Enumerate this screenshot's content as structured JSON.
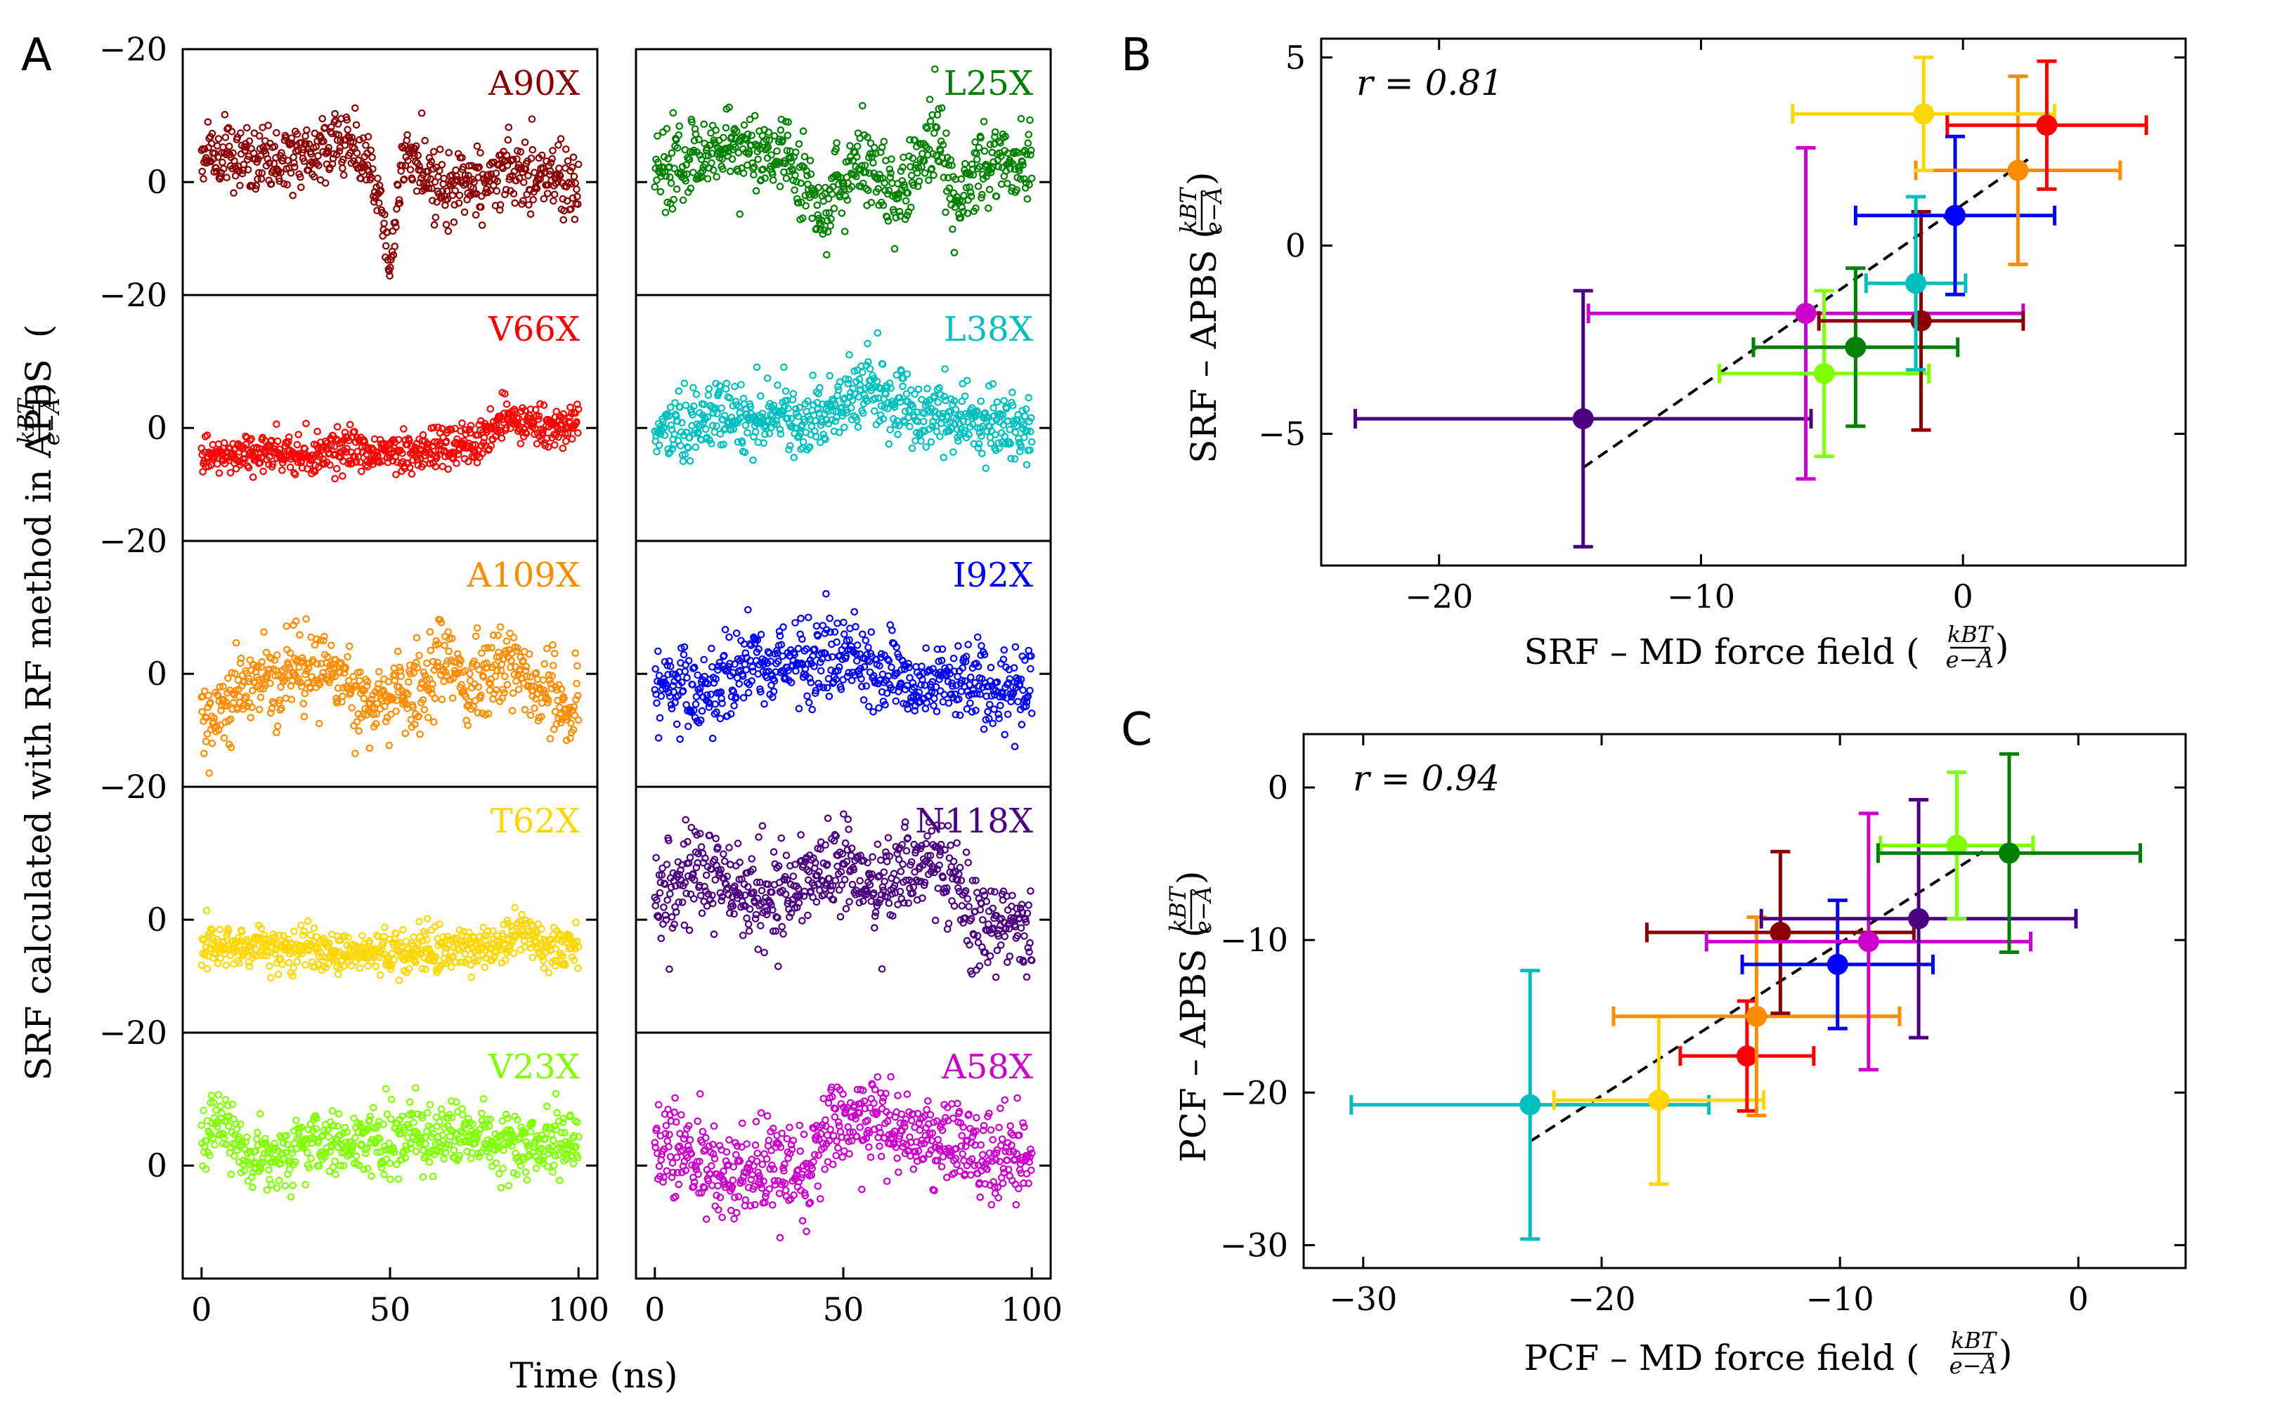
{
  "panel_letters": [
    "A",
    "B",
    "C"
  ],
  "panel_a": {
    "ylabel": "SRF calculated with RF method in APBS",
    "xlabel": "Time (ns)",
    "unit_numerator": "kBT",
    "unit_denominator": "e−Å"
  },
  "panel_b": {
    "xlabel": "SRF – MD force field",
    "ylabel": "SRF – APBS",
    "annotation": "r = 0.81"
  },
  "panel_c": {
    "xlabel": "PCF – MD force field",
    "ylabel": "PCF – APBS",
    "annotation": "r = 0.94"
  },
  "chart_data": [
    {
      "type": "scatter",
      "panel": "A",
      "xlabel": "Time (ns)",
      "ylabel": "SRF calculated with RF method in APBS (kBT/e−Å)",
      "xlim": [
        -5,
        105
      ],
      "ylim_per_row": [
        [
          -20,
          17
        ],
        [
          -20,
          17
        ],
        [
          -20,
          17
        ],
        [
          -20,
          17
        ],
        [
          -20,
          17
        ]
      ],
      "y_inverted": true,
      "xticks": [
        0,
        50,
        100
      ],
      "yticks": [
        -20,
        0
      ],
      "grid": false,
      "series": [
        {
          "name": "A90X",
          "col": 0,
          "row": 0,
          "color": "#8b0000",
          "segments": [
            [
              0,
              -4
            ],
            [
              15,
              -3
            ],
            [
              30,
              -5
            ],
            [
              40,
              -6
            ],
            [
              45,
              -2
            ],
            [
              48,
              5
            ],
            [
              50,
              14
            ],
            [
              52,
              3
            ],
            [
              55,
              -5
            ],
            [
              58,
              -2
            ],
            [
              62,
              1
            ],
            [
              70,
              0
            ],
            [
              80,
              -1
            ],
            [
              90,
              -1
            ],
            [
              100,
              1
            ]
          ],
          "noise": 2.5
        },
        {
          "name": "L25X",
          "col": 1,
          "row": 0,
          "color": "#008000",
          "segments": [
            [
              0,
              -2
            ],
            [
              20,
              -5
            ],
            [
              35,
              -5
            ],
            [
              40,
              1
            ],
            [
              45,
              4
            ],
            [
              55,
              -3
            ],
            [
              60,
              0
            ],
            [
              65,
              4
            ],
            [
              70,
              -4
            ],
            [
              75,
              -6
            ],
            [
              80,
              2
            ],
            [
              90,
              -4
            ],
            [
              100,
              -3
            ]
          ],
          "noise": 3.0
        },
        {
          "name": "V66X",
          "col": 0,
          "row": 1,
          "color": "#ff0000",
          "segments": [
            [
              0,
              4
            ],
            [
              30,
              4
            ],
            [
              60,
              3
            ],
            [
              75,
              2
            ],
            [
              80,
              -2
            ],
            [
              90,
              0
            ],
            [
              100,
              -1
            ]
          ],
          "noise": 1.6
        },
        {
          "name": "L38X",
          "col": 1,
          "row": 1,
          "color": "#00bfbf",
          "segments": [
            [
              0,
              1
            ],
            [
              20,
              -2
            ],
            [
              40,
              -1
            ],
            [
              50,
              -3
            ],
            [
              55,
              -6
            ],
            [
              70,
              -2
            ],
            [
              85,
              -1
            ],
            [
              100,
              0
            ]
          ],
          "noise": 2.5
        },
        {
          "name": "A109X",
          "col": 0,
          "row": 2,
          "color": "#ff8c00",
          "segments": [
            [
              0,
              8
            ],
            [
              10,
              2
            ],
            [
              25,
              0
            ],
            [
              35,
              -2
            ],
            [
              40,
              3
            ],
            [
              50,
              4
            ],
            [
              60,
              1
            ],
            [
              65,
              -4
            ],
            [
              70,
              4
            ],
            [
              80,
              -2
            ],
            [
              90,
              3
            ],
            [
              100,
              4
            ]
          ],
          "noise": 3.0
        },
        {
          "name": "I92X",
          "col": 1,
          "row": 2,
          "color": "#0000ff",
          "segments": [
            [
              0,
              1
            ],
            [
              15,
              2
            ],
            [
              25,
              -2
            ],
            [
              40,
              -1
            ],
            [
              50,
              -3
            ],
            [
              60,
              0
            ],
            [
              70,
              2
            ],
            [
              80,
              1
            ],
            [
              90,
              3
            ],
            [
              100,
              2
            ]
          ],
          "noise": 3.0
        },
        {
          "name": "T62X",
          "col": 0,
          "row": 3,
          "color": "#ffd700",
          "segments": [
            [
              0,
              4
            ],
            [
              50,
              5
            ],
            [
              80,
              4
            ],
            [
              85,
              1
            ],
            [
              90,
              4
            ],
            [
              100,
              4
            ]
          ],
          "noise": 1.6
        },
        {
          "name": "N118X",
          "col": 1,
          "row": 3,
          "color": "#4b0082",
          "segments": [
            [
              0,
              -4
            ],
            [
              15,
              -8
            ],
            [
              25,
              -3
            ],
            [
              40,
              -6
            ],
            [
              50,
              -8
            ],
            [
              60,
              -5
            ],
            [
              70,
              -10
            ],
            [
              80,
              -6
            ],
            [
              85,
              1
            ],
            [
              100,
              1
            ]
          ],
          "noise": 3.5
        },
        {
          "name": "V23X",
          "col": 0,
          "row": 4,
          "color": "#7fff00",
          "segments": [
            [
              0,
              -4
            ],
            [
              5,
              -6
            ],
            [
              15,
              0
            ],
            [
              30,
              -3
            ],
            [
              50,
              -4
            ],
            [
              70,
              -5
            ],
            [
              80,
              -3
            ],
            [
              100,
              -3
            ]
          ],
          "noise": 2.5
        },
        {
          "name": "A58X",
          "col": 1,
          "row": 4,
          "color": "#cc00cc",
          "segments": [
            [
              0,
              -5
            ],
            [
              20,
              2
            ],
            [
              40,
              1
            ],
            [
              45,
              -5
            ],
            [
              55,
              -8
            ],
            [
              70,
              -5
            ],
            [
              80,
              -3
            ],
            [
              100,
              0
            ]
          ],
          "noise": 3.5
        }
      ]
    },
    {
      "type": "scatter",
      "panel": "B",
      "xlabel": "SRF – MD force field (kBT/e−Å)",
      "ylabel": "SRF – APBS (kBT/e−Å)",
      "xlim": [
        -24.5,
        8.5
      ],
      "ylim": [
        -8.5,
        5.5
      ],
      "xticks": [
        -20,
        -10,
        0
      ],
      "yticks": [
        -5,
        0,
        5
      ],
      "annotation": "r = 0.81",
      "fit_line": {
        "x": [
          -14.5,
          2.5
        ],
        "y": [
          -5.9,
          2.3
        ]
      },
      "points": [
        {
          "color": "#4b0082",
          "x": -14.5,
          "y": -4.6,
          "xerr": [
            8.7,
            8.7
          ],
          "yerr": [
            3.4,
            3.4
          ]
        },
        {
          "color": "#cc00cc",
          "x": -6.0,
          "y": -1.8,
          "xerr": [
            8.3,
            8.3
          ],
          "yerr": [
            4.4,
            4.4
          ]
        },
        {
          "color": "#7fff00",
          "x": -5.3,
          "y": -3.4,
          "xerr": [
            4.0,
            4.0
          ],
          "yerr": [
            2.2,
            2.2
          ]
        },
        {
          "color": "#008000",
          "x": -4.1,
          "y": -2.7,
          "xerr": [
            3.9,
            3.9
          ],
          "yerr": [
            2.1,
            2.1
          ]
        },
        {
          "color": "#8b0000",
          "x": -1.6,
          "y": -2.0,
          "xerr": [
            3.9,
            3.9
          ],
          "yerr": [
            2.9,
            2.9
          ]
        },
        {
          "color": "#00bfbf",
          "x": -1.8,
          "y": -1.0,
          "xerr": [
            1.9,
            1.9
          ],
          "yerr": [
            2.3,
            2.3
          ]
        },
        {
          "color": "#0000ff",
          "x": -0.3,
          "y": 0.8,
          "xerr": [
            3.8,
            3.8
          ],
          "yerr": [
            2.1,
            2.1
          ]
        },
        {
          "color": "#ff8c00",
          "x": 2.1,
          "y": 2.0,
          "xerr": [
            3.9,
            3.9
          ],
          "yerr": [
            2.5,
            2.5
          ]
        },
        {
          "color": "#ffd700",
          "x": -1.5,
          "y": 3.5,
          "xerr": [
            5.0,
            5.0
          ],
          "yerr": [
            1.5,
            1.5
          ]
        },
        {
          "color": "#ff0000",
          "x": 3.2,
          "y": 3.2,
          "xerr": [
            3.8,
            3.8
          ],
          "yerr": [
            1.7,
            1.7
          ]
        }
      ]
    },
    {
      "type": "scatter",
      "panel": "C",
      "xlabel": "PCF – MD force field (kBT/e−Å)",
      "ylabel": "PCF – APBS (kBT/e−Å)",
      "xlim": [
        -32.5,
        4.5
      ],
      "ylim": [
        -31.5,
        3.5
      ],
      "xticks": [
        -30,
        -20,
        -10,
        0
      ],
      "yticks": [
        -30,
        -20,
        -10,
        0
      ],
      "annotation": "r = 0.94",
      "fit_line": {
        "x": [
          -23,
          -4
        ],
        "y": [
          -23.2,
          -4.2
        ]
      },
      "points": [
        {
          "color": "#00bfbf",
          "x": -23.0,
          "y": -20.8,
          "xerr": [
            7.5,
            7.5
          ],
          "yerr": [
            8.8,
            8.8
          ]
        },
        {
          "color": "#ffd700",
          "x": -17.6,
          "y": -20.5,
          "xerr": [
            4.4,
            4.4
          ],
          "yerr": [
            5.5,
            5.5
          ]
        },
        {
          "color": "#ff0000",
          "x": -13.9,
          "y": -17.6,
          "xerr": [
            2.8,
            2.8
          ],
          "yerr": [
            3.6,
            3.6
          ]
        },
        {
          "color": "#ff8c00",
          "x": -13.5,
          "y": -15.0,
          "xerr": [
            6.0,
            6.0
          ],
          "yerr": [
            6.5,
            6.5
          ]
        },
        {
          "color": "#8b0000",
          "x": -12.5,
          "y": -9.5,
          "xerr": [
            5.6,
            5.6
          ],
          "yerr": [
            5.3,
            5.3
          ]
        },
        {
          "color": "#0000ff",
          "x": -10.1,
          "y": -11.6,
          "xerr": [
            4.0,
            4.0
          ],
          "yerr": [
            4.2,
            4.2
          ]
        },
        {
          "color": "#cc00cc",
          "x": -8.8,
          "y": -10.1,
          "xerr": [
            6.8,
            6.8
          ],
          "yerr": [
            8.4,
            8.4
          ]
        },
        {
          "color": "#4b0082",
          "x": -6.7,
          "y": -8.6,
          "xerr": [
            6.6,
            6.6
          ],
          "yerr": [
            7.8,
            7.8
          ]
        },
        {
          "color": "#7fff00",
          "x": -5.1,
          "y": -3.8,
          "xerr": [
            3.2,
            3.2
          ],
          "yerr": [
            4.8,
            4.8
          ]
        },
        {
          "color": "#008000",
          "x": -2.9,
          "y": -4.3,
          "xerr": [
            5.5,
            5.5
          ],
          "yerr": [
            6.5,
            6.5
          ]
        }
      ]
    }
  ]
}
